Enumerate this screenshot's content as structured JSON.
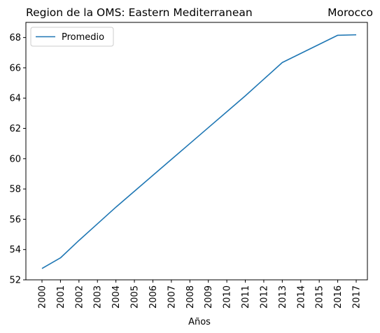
{
  "chart_data": {
    "type": "line",
    "title": "Region de la OMS: Eastern Mediterranean",
    "title_right": "Morocco",
    "xlabel": "Años",
    "ylabel": "",
    "x": [
      "2000",
      "2001",
      "2002",
      "2003",
      "2004",
      "2005",
      "2006",
      "2007",
      "2008",
      "2009",
      "2010",
      "2011",
      "2012",
      "2013",
      "2014",
      "2015",
      "2016",
      "2017"
    ],
    "series": [
      {
        "name": "Promedio",
        "color": "#1f77b4",
        "values": [
          52.75,
          53.45,
          54.6,
          55.7,
          56.8,
          57.85,
          58.9,
          59.95,
          61.0,
          62.05,
          63.1,
          64.15,
          65.25,
          66.35,
          66.95,
          67.55,
          68.15,
          68.18
        ]
      }
    ],
    "ylim": [
      52,
      69
    ],
    "yticks": [
      52,
      54,
      56,
      58,
      60,
      62,
      64,
      66,
      68
    ],
    "grid": false,
    "legend_position": "top-left",
    "x_tick_rotation": "vertical"
  }
}
